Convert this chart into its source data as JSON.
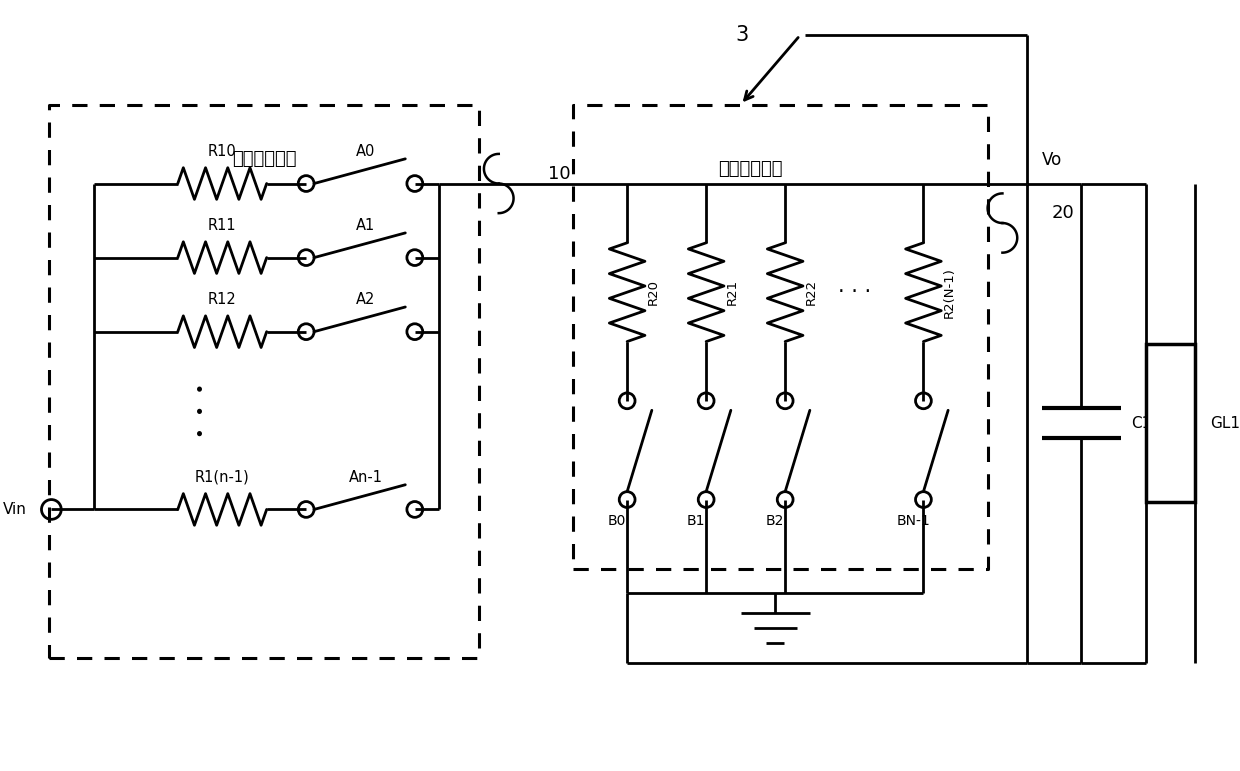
{
  "bg_color": "#ffffff",
  "line_color": "#000000",
  "line_width": 2.0,
  "fig_width": 12.4,
  "fig_height": 7.71,
  "label_3": "3",
  "label_10": "10",
  "label_20": "20",
  "label_Vo": "Vo",
  "label_Vin": "Vin",
  "label_box1": "第一选择电路",
  "label_box2": "第二选择电路",
  "resistors_left": [
    {
      "label": "R10",
      "switch": "A0"
    },
    {
      "label": "R11",
      "switch": "A1"
    },
    {
      "label": "R12",
      "switch": "A2"
    },
    {
      "label": "R1(n-1)",
      "switch": "An-1"
    }
  ],
  "resistors_right": [
    {
      "label": "R20"
    },
    {
      "label": "R21"
    },
    {
      "label": "R22"
    },
    {
      "label": "R2(N-1)"
    }
  ],
  "switches_right": [
    "B0",
    "B1",
    "B2",
    "BN-1"
  ],
  "label_C1": "C1",
  "label_GL1": "GL1"
}
